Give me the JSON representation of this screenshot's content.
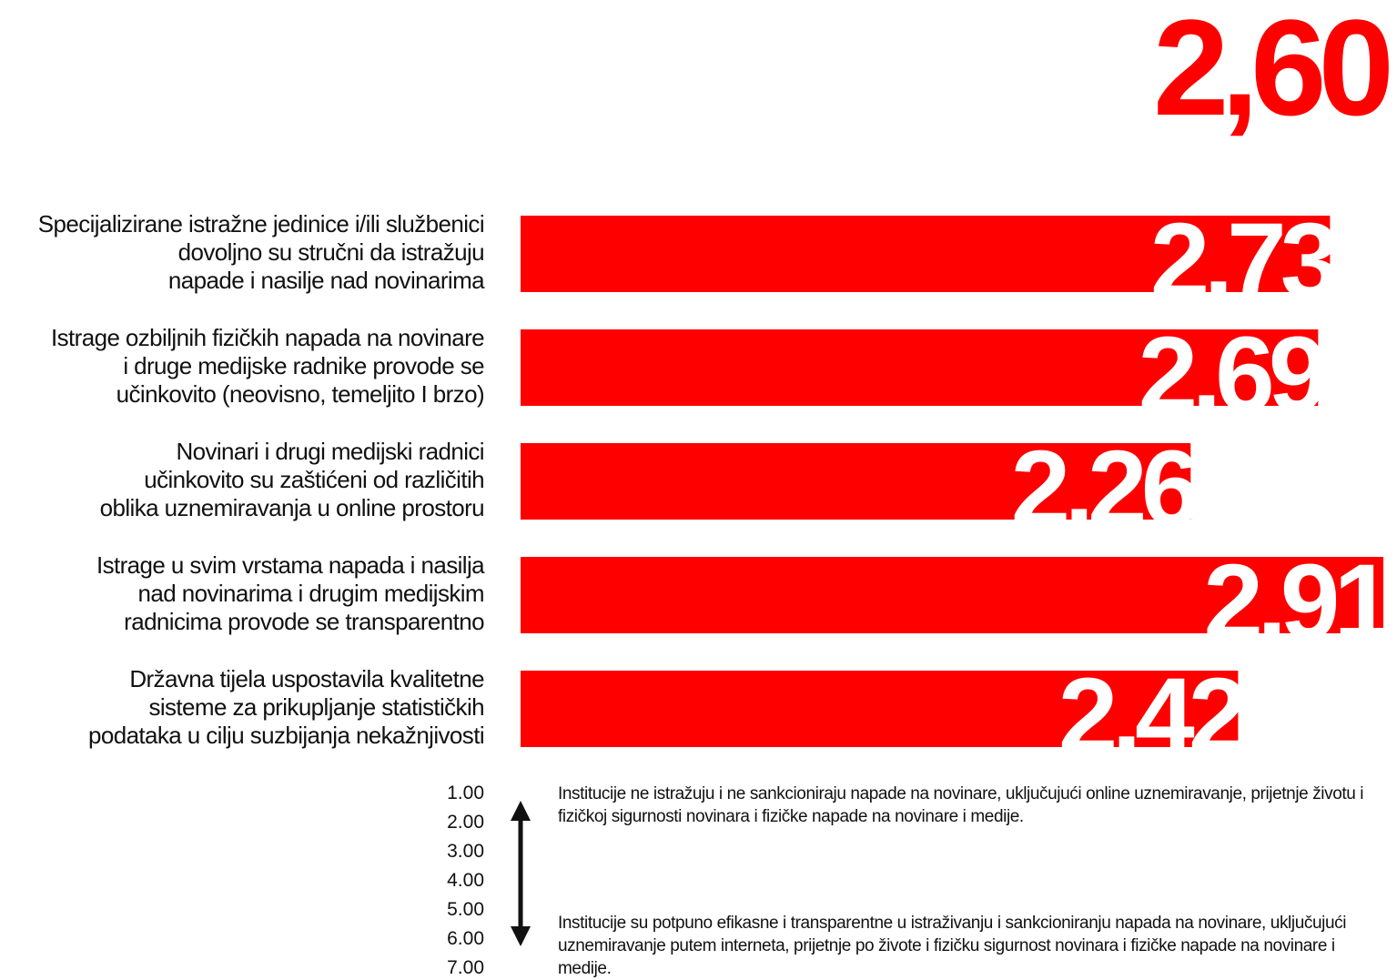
{
  "header": {
    "title_fragment": "",
    "overall_score": "2,60"
  },
  "chart_data": {
    "type": "bar",
    "orientation": "horizontal",
    "categories": [
      "Specijalizirane istražne jedinice i/ili službenici dovoljno su stručni da istražuju napade i nasilje nad novinarima",
      "Istrage ozbiljnih fizičkih napada na novinare i druge medijske radnike provode se učinkovito (neovisno, temeljito I brzo)",
      "Novinari i drugi medijski radnici učinkovito su zaštićeni od različitih oblika uznemiravanja u online prostoru",
      "Istrage u svim vrstama napada i nasilja nad novinarima i drugim medijskim radnicima provode se transparentno",
      "Državna tijela uspostavila kvalitetne sisteme za prikupljanje statističkih podataka u cilju suzbijanja nekažnjivosti"
    ],
    "category_lines": [
      [
        "Specijalizirane istražne jedinice i/ili službenici",
        "dovoljno su stručni da istražuju",
        "napade i nasilje nad novinarima"
      ],
      [
        "Istrage ozbiljnih fizičkih napada na novinare",
        "i druge medijske radnike provode se",
        "učinkovito (neovisno, temeljito I brzo)"
      ],
      [
        "Novinari i drugi medijski radnici",
        "učinkovito su zaštićeni od različitih",
        "oblika uznemiravanja u online prostoru"
      ],
      [
        "Istrage u svim vrstama napada i nasilja",
        "nad novinarima i drugim medijskim",
        "radnicima provode se transparentno"
      ],
      [
        "Državna tijela uspostavila kvalitetne",
        "sisteme za prikupljanje statističkih",
        "podataka u cilju suzbijanja nekažnjivosti"
      ]
    ],
    "values": [
      2.73,
      2.69,
      2.26,
      2.91,
      2.42
    ],
    "value_labels": [
      "2,73",
      "2,69",
      "2,26",
      "2,91",
      "2,42"
    ],
    "xlim": [
      0,
      3
    ],
    "bar_color": "#ff0000",
    "label_color": "#ffffff",
    "grid": false,
    "legend": "none"
  },
  "scale": {
    "ticks": [
      "1.00",
      "2.00",
      "3.00",
      "4.00",
      "5.00",
      "6.00",
      "7.00"
    ],
    "low_description": "Institucije ne istražuju i ne sankcioniraju napade na novinare, uključujući online uznemiravanje, prijetnje životu i fizičkoj sigurnosti novinara i fizičke napade na novinare i medije.",
    "high_description": "Institucije su potpuno efikasne i transparentne u istraživanju i sankcioniranju napada na novinare, uključujući uznemiravanje putem interneta, prijetnje po živote i fizičku sigurnost novinara i fizičke napade na novinare i medije."
  },
  "colors": {
    "accent": "#ff0000",
    "text": "#111111"
  }
}
